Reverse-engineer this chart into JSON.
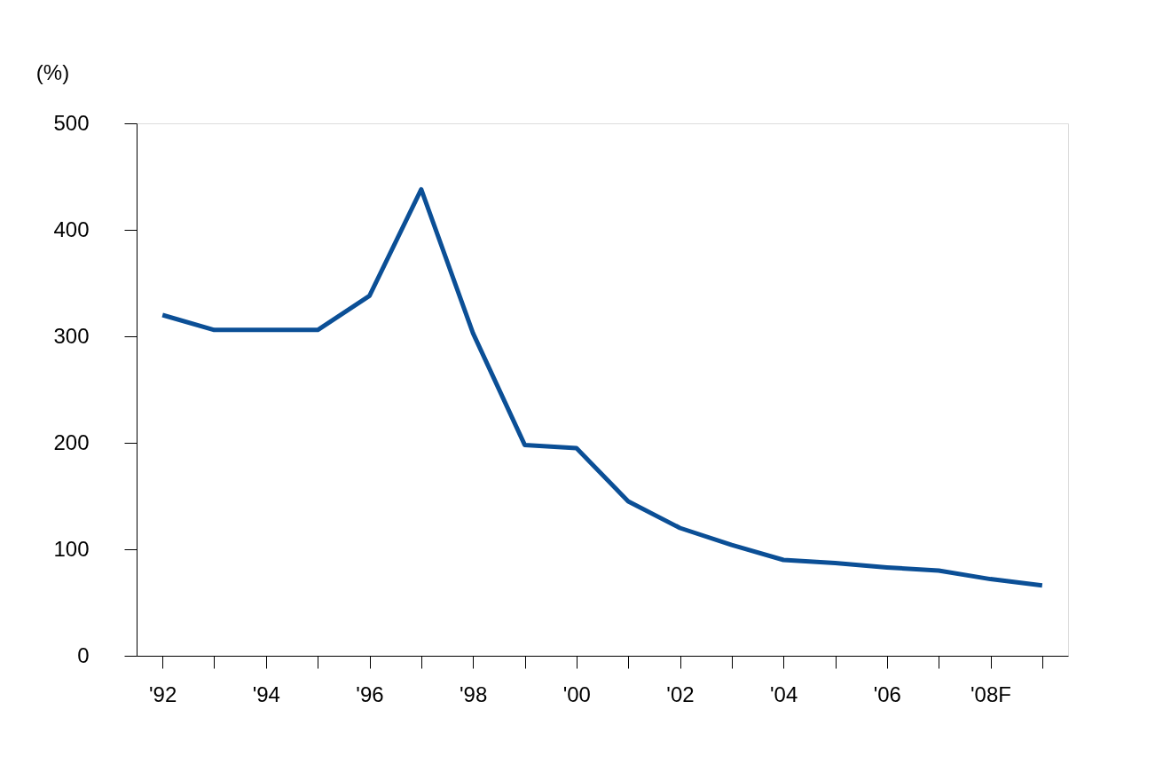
{
  "chart_data": {
    "type": "line",
    "ylabel": "(%)",
    "categories": [
      "'92",
      null,
      "'94",
      null,
      "'96",
      null,
      "'98",
      null,
      "'00",
      null,
      "'02",
      null,
      "'04",
      null,
      "'06",
      null,
      "'08F",
      null
    ],
    "series": [
      {
        "color": "#0b4f96",
        "values": [
          320,
          306,
          306,
          306,
          338,
          438,
          303,
          198,
          195,
          145,
          120,
          104,
          90,
          87,
          83,
          80,
          72,
          66
        ]
      }
    ],
    "ylim": [
      0,
      500
    ],
    "yticks": [
      0,
      100,
      200,
      300,
      400,
      500
    ],
    "grid": false,
    "legend": false,
    "marker": "none",
    "line_style": "solid"
  }
}
